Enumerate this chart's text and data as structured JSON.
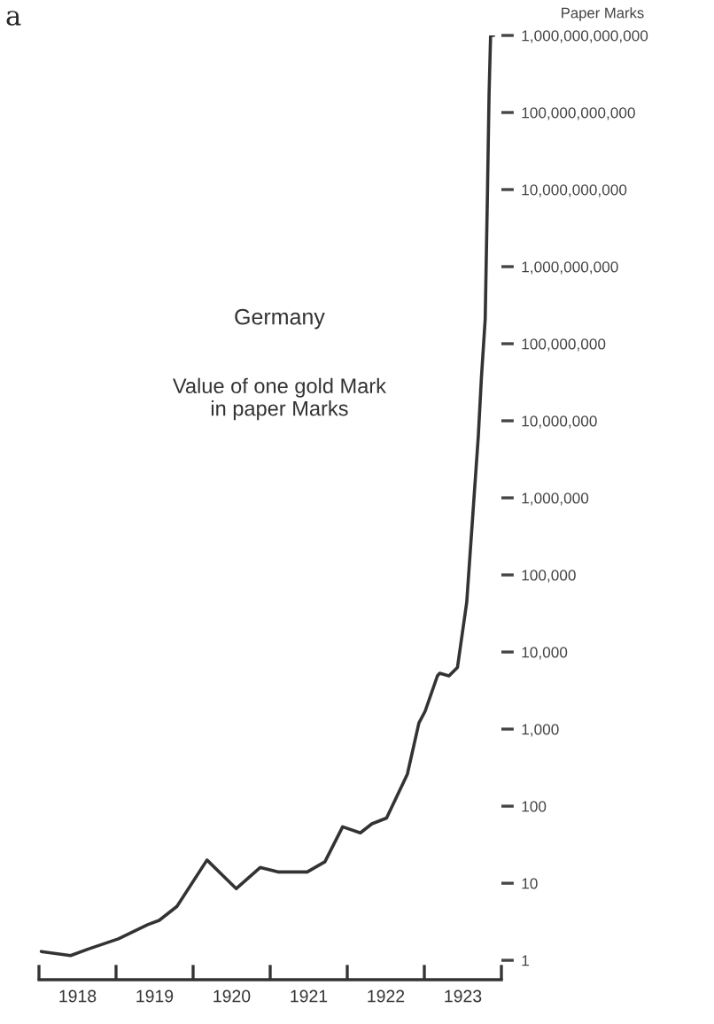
{
  "chart_data": {
    "type": "line",
    "title": "Germany",
    "subtitle": "Value of one gold Mark\nin paper Marks",
    "ylabel": "Paper Marks",
    "annotations": [
      "a"
    ],
    "log": "y",
    "grid": false,
    "marker": "none",
    "line_style": "solid",
    "xlim": [
      1918,
      1924
    ],
    "xticks": [
      {
        "value": 1918,
        "label": null
      },
      {
        "value": 1919,
        "label": null
      },
      {
        "value": 1920,
        "label": null
      },
      {
        "value": 1921,
        "label": null
      },
      {
        "value": 1922,
        "label": null
      },
      {
        "value": 1923,
        "label": null
      },
      {
        "value": 1924,
        "label": null
      },
      {
        "value": 1918.5,
        "label": "1918"
      },
      {
        "value": 1919.5,
        "label": "1919"
      },
      {
        "value": 1920.5,
        "label": "1920"
      },
      {
        "value": 1921.5,
        "label": "1921"
      },
      {
        "value": 1922.5,
        "label": "1922"
      },
      {
        "value": 1923.5,
        "label": "1923"
      }
    ],
    "ylim": [
      0.56,
      1000000000000.0
    ],
    "yticks": [
      {
        "value": 1,
        "label": "1"
      },
      {
        "value": 10,
        "label": "10"
      },
      {
        "value": 100,
        "label": "100"
      },
      {
        "value": 1000,
        "label": "1,000"
      },
      {
        "value": 10000,
        "label": "10,000"
      },
      {
        "value": 100000,
        "label": "100,000"
      },
      {
        "value": 1000000,
        "label": "1,000,000"
      },
      {
        "value": 10000000,
        "label": "10,000,000"
      },
      {
        "value": 100000000,
        "label": "100,000,000"
      },
      {
        "value": 1000000000,
        "label": "1,000,000,000"
      },
      {
        "value": 10000000000,
        "label": "10,000,000,000"
      },
      {
        "value": 100000000000,
        "label": "100,000,000,000"
      },
      {
        "value": 1000000000000,
        "label": "1,000,000,000,000"
      }
    ],
    "series": [
      {
        "color": "#333333",
        "x": [
          1918.03,
          1918.41,
          1918.64,
          1919.03,
          1919.41,
          1919.56,
          1919.79,
          1920.18,
          1920.56,
          1920.87,
          1921.1,
          1921.48,
          1921.71,
          1921.94,
          1922.17,
          1922.32,
          1922.51,
          1922.78,
          1922.93,
          1923.01,
          1923.17,
          1923.2,
          1923.32,
          1923.43,
          1923.55,
          1923.63,
          1923.7,
          1923.74,
          1923.79,
          1923.82,
          1923.84,
          1923.86,
          1923.9
        ],
        "values": [
          1.3,
          1.15,
          1.4,
          1.9,
          2.9,
          3.3,
          5,
          20,
          8.5,
          16,
          14,
          14,
          19,
          54,
          45,
          59,
          70,
          260,
          1200,
          1700,
          4900,
          5300,
          4900,
          6300,
          44000,
          620000,
          6200000,
          35000000,
          210000000,
          10000000000,
          170000000000,
          1000000000000,
          1000000000000
        ]
      }
    ]
  }
}
